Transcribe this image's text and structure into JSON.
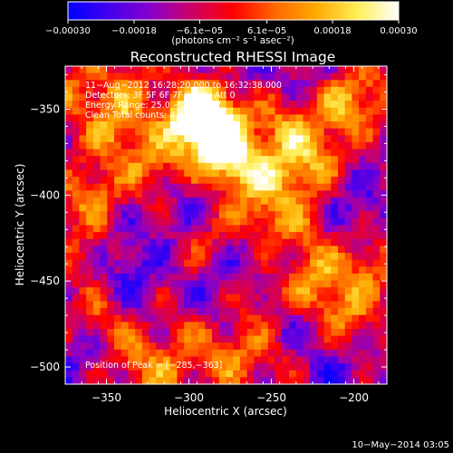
{
  "chart_data": {
    "type": "heatmap",
    "title": "Reconstructed RHESSI Image",
    "xlabel": "Heliocentric X (arcsec)",
    "ylabel": "Heliocentric Y (arcsec)",
    "xlim": [
      -375,
      -180
    ],
    "ylim": [
      -510,
      -325
    ],
    "x_ticks": [
      -350,
      -300,
      -250,
      -200
    ],
    "x_tick_labels": [
      "−350",
      "−300",
      "−250",
      "−200"
    ],
    "y_ticks": [
      -350,
      -400,
      -450,
      -500
    ],
    "y_tick_labels": [
      "−350",
      "−400",
      "−450",
      "−500"
    ],
    "colorbar": {
      "min": -0.0003,
      "max": 0.0003,
      "ticks": [
        -0.0003,
        -0.00018,
        -6.1e-05,
        6.1e-05,
        0.00018,
        0.0003
      ],
      "tick_labels": [
        "−0.00030",
        "−0.00018",
        "−6.1e−05",
        "6.1e−05",
        "0.00018",
        "0.00030"
      ],
      "unit_label": "(photons cm⁻² s⁻¹ asec⁻²)",
      "colormap": [
        "#0000ff",
        "#4400ee",
        "#8800cc",
        "#cc0066",
        "#ff0000",
        "#ff6600",
        "#ffaa00",
        "#ffee55",
        "#ffffff"
      ]
    },
    "annotations": {
      "time": "11−Aug−2012 16:28:20.000 to 16:32:38.000",
      "detectors": "Detectors: 3F 5F 6F 7F 8F 9F, Att 0",
      "energy": "Energy Range: 25.0 − 50.0 keV",
      "clean": "Clean    Total counts: 4.67E+03",
      "peak": "Position of Peak = [−285,−363]"
    },
    "peak": [
      -285,
      -363
    ],
    "footer_date": "10−May−2014 03:05",
    "grid": false,
    "peaks": [
      [
        -282,
        -368,
        1.0
      ],
      [
        -287,
        -350,
        0.9
      ],
      [
        -300,
        -357,
        0.75
      ],
      [
        -275,
        -385,
        0.6
      ],
      [
        -250,
        -390,
        0.55
      ],
      [
        -255,
        -415,
        0.5
      ],
      [
        -242,
        -360,
        0.55
      ],
      [
        -225,
        -380,
        0.6
      ],
      [
        -210,
        -350,
        0.5
      ],
      [
        -195,
        -340,
        0.45
      ],
      [
        -320,
        -385,
        0.55
      ],
      [
        -360,
        -400,
        0.55
      ],
      [
        -345,
        -365,
        0.5
      ],
      [
        -340,
        -340,
        0.45
      ],
      [
        -225,
        -450,
        0.6
      ],
      [
        -205,
        -470,
        0.55
      ],
      [
        -192,
        -440,
        0.5
      ],
      [
        -260,
        -460,
        0.45
      ],
      [
        -355,
        -470,
        0.5
      ],
      [
        -335,
        -495,
        0.45
      ],
      [
        -300,
        -475,
        0.4
      ],
      [
        -315,
        -505,
        0.35
      ],
      [
        -280,
        -495,
        0.35
      ],
      [
        -262,
        -490,
        0.3
      ],
      [
        -240,
        -495,
        0.3
      ],
      [
        -300,
        -440,
        0.25
      ],
      [
        -362,
        -435,
        0.35
      ],
      [
        -320,
        -415,
        0.35
      ],
      [
        -285,
        -425,
        0.3
      ],
      [
        -370,
        -340,
        0.4
      ],
      [
        -230,
        -420,
        0.4
      ]
    ],
    "troughs": [
      [
        -320,
        -420,
        0.85
      ],
      [
        -345,
        -450,
        0.75
      ],
      [
        -290,
        -460,
        0.9
      ],
      [
        -260,
        -435,
        0.7
      ],
      [
        -200,
        -410,
        0.65
      ],
      [
        -240,
        -480,
        0.7
      ],
      [
        -215,
        -505,
        0.6
      ],
      [
        -362,
        -495,
        0.6
      ],
      [
        -300,
        -400,
        0.55
      ],
      [
        -275,
        -330,
        0.4
      ],
      [
        -225,
        -335,
        0.45
      ]
    ]
  }
}
